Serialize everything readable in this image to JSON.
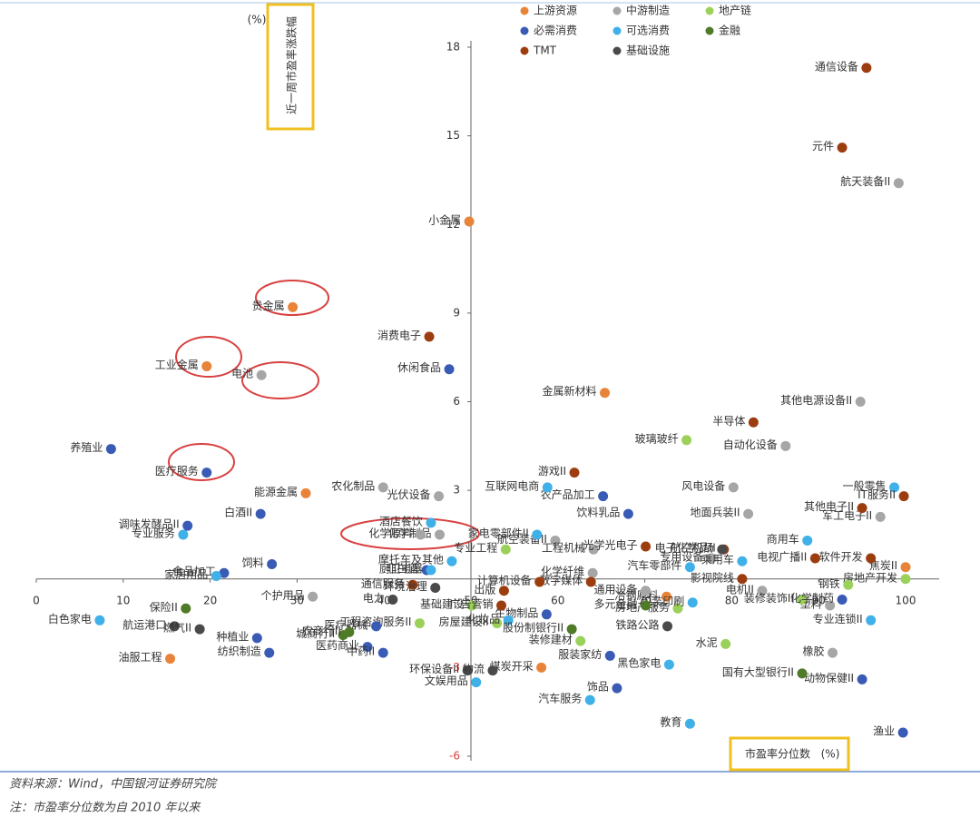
{
  "chart_data": {
    "type": "scatter",
    "y_label": "近一周市盈率涨跌幅",
    "y_unit": "(%)",
    "x_label": "市盈率分位数",
    "x_unit": "(%)",
    "source": "资料来源：Wind，中国银河证券研究院",
    "note": "注：市盈率分位数为自 2010 年以来",
    "xlim": [
      0,
      100
    ],
    "xticks": [
      0,
      10,
      20,
      30,
      40,
      50,
      60,
      70,
      80,
      90,
      100
    ],
    "ylim": [
      -6,
      18
    ],
    "yticks": [
      -6,
      -3,
      3,
      6,
      9,
      12,
      15,
      18
    ],
    "series": [
      {
        "name": "上游资源",
        "color": "#e8843a",
        "labels": [
          "小金属",
          "贵金属",
          "工业金属",
          "金属新材料",
          "能源金属",
          "焦炭II",
          "油服工程",
          "煤炭开采",
          "冶钢原料"
        ],
        "x": [
          49.8,
          29.5,
          19.6,
          65.4,
          31.0,
          100,
          15.4,
          58.1,
          72.5
        ],
        "values": [
          12.1,
          9.2,
          7.2,
          6.3,
          2.9,
          0.4,
          -2.7,
          -3.0,
          -0.6
        ]
      },
      {
        "name": "中游制造",
        "color": "#a6a6a6",
        "labels": [
          "航天装备II",
          "其他电源设备II",
          "自动化设备",
          "电池",
          "风电设备",
          "地面兵装II",
          "光伏设备",
          "军工电子II",
          "航空装备II",
          "工程机械",
          "专用设备",
          "通用设备",
          "电机II",
          "橡胶",
          "塑料",
          "化学制品",
          "化学原料",
          "化学纤维",
          "农化制品",
          "个护用品"
        ],
        "x": [
          99.2,
          94.8,
          86.2,
          25.9,
          80.2,
          81.9,
          46.3,
          97.1,
          59.7,
          64.1,
          77.7,
          70.1,
          83.5,
          91.6,
          91.3,
          46.4,
          44.2,
          64.0,
          39.9,
          31.8
        ],
        "values": [
          13.4,
          6.0,
          4.5,
          6.9,
          3.1,
          2.2,
          2.8,
          2.1,
          1.3,
          1.0,
          0.7,
          -0.4,
          -0.4,
          -2.5,
          -0.9,
          1.5,
          1.5,
          0.2,
          3.1,
          -0.6
        ]
      },
      {
        "name": "地产链",
        "color": "#9bd15a",
        "labels": [
          "玻璃玻纤",
          "专业工程",
          "装修装饰II",
          "房地产开发",
          "钢铁",
          "水泥",
          "装修建材",
          "工程咨询服务II",
          "房屋建设II",
          "基础建设",
          "房地产服务"
        ],
        "x": [
          74.8,
          54.0,
          88.1,
          100,
          93.4,
          79.3,
          62.6,
          44.1,
          53.0,
          50.1,
          73.8
        ],
        "values": [
          4.7,
          1.0,
          -0.7,
          0.0,
          -0.2,
          -2.2,
          -2.1,
          -1.5,
          -1.5,
          -0.9,
          -1.0
        ]
      },
      {
        "name": "必需消费",
        "color": "#3a5bb5",
        "labels": [
          "养殖业",
          "医疗服务",
          "白酒II",
          "调味发酵品II",
          "饲料",
          "食品加工",
          "休闲食品",
          "农产品加工",
          "饮料乳品",
          "化学制药",
          "动物保健II",
          "渔业",
          "种植业",
          "纺织制造",
          "医疗器械",
          "医药商业",
          "中药II",
          "饰品",
          "服装家纺",
          "生物制品",
          "非白酒"
        ],
        "x": [
          8.6,
          19.6,
          25.8,
          17.4,
          27.1,
          21.6,
          47.5,
          65.2,
          68.1,
          92.7,
          95.0,
          99.7,
          25.4,
          26.8,
          39.1,
          38.1,
          39.9,
          66.8,
          66.0,
          58.7,
          44.9
        ],
        "values": [
          4.4,
          3.6,
          2.2,
          1.8,
          0.5,
          0.2,
          7.1,
          2.8,
          2.2,
          -0.7,
          -3.4,
          -5.2,
          -2.0,
          -2.5,
          -1.6,
          -2.3,
          -2.5,
          -3.7,
          -2.6,
          -1.2,
          0.3
        ]
      },
      {
        "name": "可选消费",
        "color": "#3fb0e8",
        "labels": [
          "白色家电",
          "专业服务",
          "家居用品",
          "一般零售",
          "酒店餐饮",
          "互联网电商",
          "家电零部件II",
          "摩托车及其他",
          "厨卫电器",
          "汽车零部件",
          "乘用车",
          "商用车",
          "黑色家电",
          "汽车服务",
          "教育",
          "专业连锁II",
          "文娱用品",
          "化妆品",
          "包装印刷"
        ],
        "x": [
          7.3,
          16.9,
          20.7,
          98.7,
          45.4,
          58.8,
          57.6,
          47.8,
          45.4,
          75.2,
          81.2,
          88.7,
          72.8,
          63.7,
          75.2,
          96.0,
          50.6,
          54.3,
          75.5
        ],
        "values": [
          -1.4,
          1.5,
          0.1,
          3.1,
          1.9,
          3.1,
          1.5,
          0.6,
          0.3,
          0.4,
          0.6,
          1.3,
          -2.9,
          -4.1,
          -4.9,
          -1.4,
          -3.5,
          -1.4,
          -0.8
        ]
      },
      {
        "name": "金融",
        "color": "#4f7a28",
        "labels": [
          "保险II",
          "国有大型银行II",
          "城商行II",
          "农商行II",
          "股份制银行II",
          "多元金融"
        ],
        "x": [
          17.2,
          88.1,
          35.3,
          36.0,
          61.6,
          70.1
        ],
        "values": [
          -1.0,
          -3.2,
          -1.9,
          -1.8,
          -1.7,
          -0.9
        ]
      },
      {
        "name": "TMT",
        "color": "#9c3d10",
        "labels": [
          "通信设备",
          "元件",
          "消费电子",
          "半导体",
          "游戏II",
          "其他电子II",
          "IT服务II",
          "光学光电子",
          "电子化学品II",
          "软件开发",
          "电视广播II",
          "影视院线",
          "数字媒体",
          "出版",
          "通信服务",
          "计算机设备",
          "广告营销"
        ],
        "x": [
          95.5,
          92.7,
          45.2,
          82.5,
          61.9,
          95.0,
          99.8,
          70.1,
          79.1,
          96.0,
          89.6,
          81.2,
          63.8,
          53.8,
          43.3,
          57.9,
          53.5
        ],
        "values": [
          17.3,
          14.6,
          8.2,
          5.3,
          3.6,
          2.4,
          2.8,
          1.1,
          1.0,
          0.7,
          0.7,
          0.0,
          -0.1,
          -0.4,
          -0.2,
          -0.1,
          -0.9
        ]
      },
      {
        "name": "基础设施",
        "color": "#4a4a4a",
        "labels": [
          "航运港口",
          "燃气II",
          "电力",
          "环保设备II",
          "物流",
          "铁路公路",
          "航空机场",
          "环境治理"
        ],
        "x": [
          15.9,
          18.8,
          41.0,
          49.6,
          52.5,
          72.6,
          78.9,
          45.9
        ],
        "values": [
          -1.6,
          -1.7,
          -0.7,
          -3.1,
          -3.1,
          -1.6,
          1.0,
          -0.3
        ]
      }
    ]
  }
}
